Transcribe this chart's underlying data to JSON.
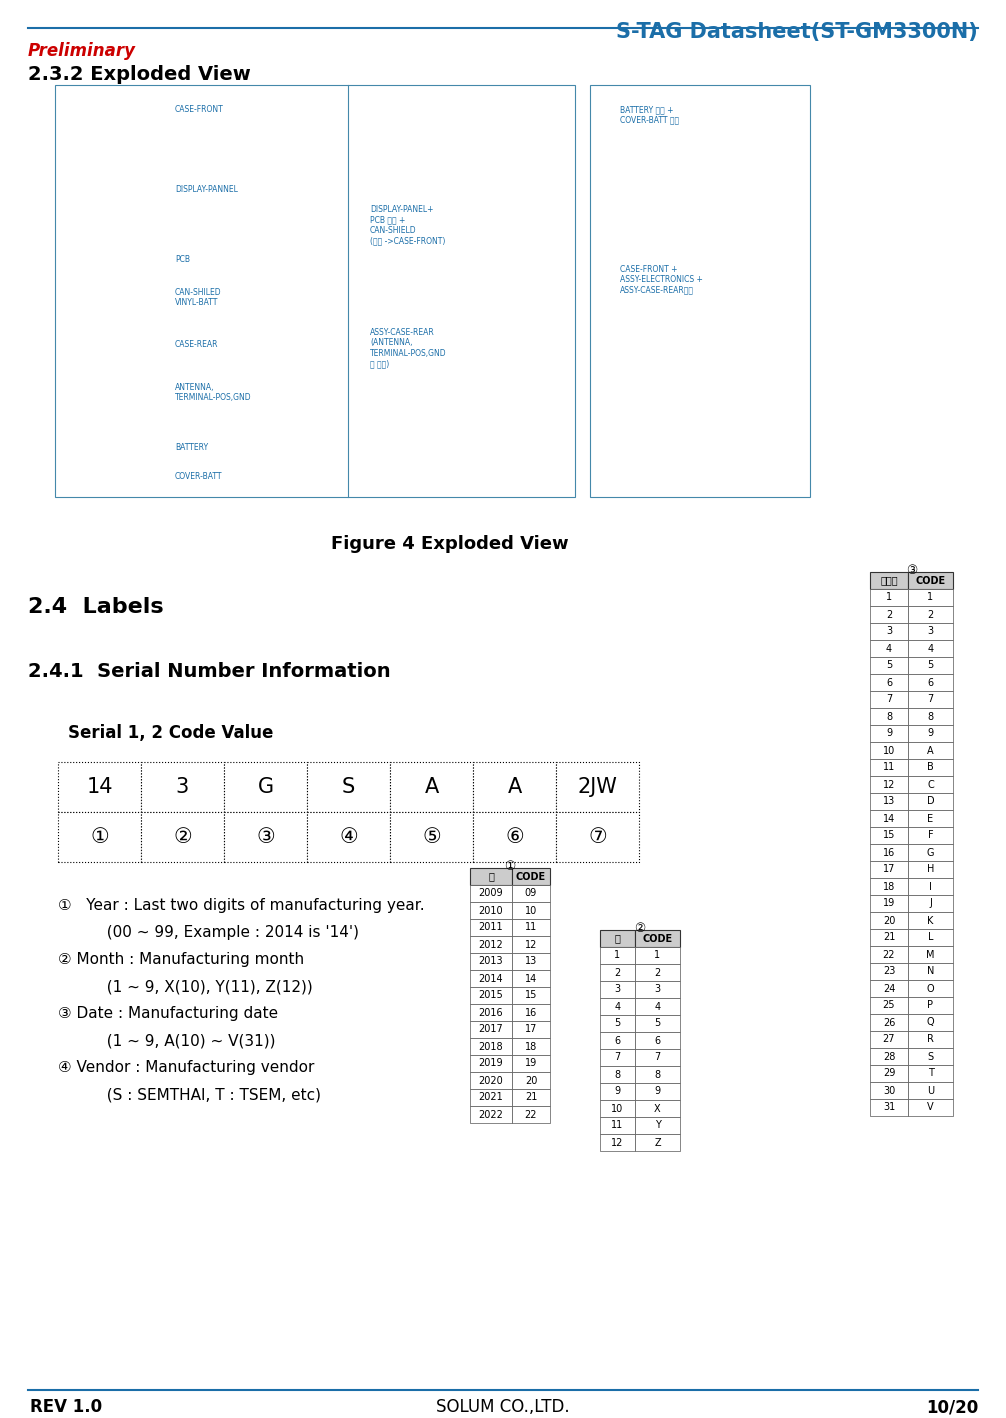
{
  "page_title": "S-TAG Datasheet(ST-GM3300N)",
  "preliminary_text": "Preliminary",
  "section_232": "2.3.2 Exploded View",
  "figure_caption": "Figure 4 Exploded View",
  "section_24": "2.4  Labels",
  "section_241": "2.4.1  Serial Number Information",
  "serial_label": "Serial 1, 2 Code Value",
  "serial_row1": [
    "14",
    "3",
    "G",
    "S",
    "A",
    "A",
    "2JW"
  ],
  "serial_row2": [
    "①",
    "②",
    "③",
    "④",
    "⑤",
    "⑥",
    "⑦"
  ],
  "notes": [
    "①   Year : Last two digits of manufacturing year.",
    "          (00 ~ 99, Example : 2014 is '14')",
    "② Month : Manufacturing month",
    "          (1 ~ 9, X(10), Y(11), Z(12))",
    "③ Date : Manufacturing date",
    "          (1 ~ 9, A(10) ~ V(31))",
    "④ Vendor : Manufacturing vendor",
    "          (S : SEMTHAI, T : TSEM, etc)"
  ],
  "footer_left": "REV 1.0",
  "footer_center": "SOLUM CO.,LTD.",
  "footer_right": "10/20",
  "title_color": "#1B6EA8",
  "preliminary_color": "#CC0000",
  "header_line_color": "#1B6EA8",
  "footer_line_color": "#1B6EA8",
  "bg_color": "#FFFFFF",
  "year_table_headers": [
    "년",
    "CODE"
  ],
  "year_table_data": [
    [
      "2009",
      "09"
    ],
    [
      "2010",
      "10"
    ],
    [
      "2011",
      "11"
    ],
    [
      "2012",
      "12"
    ],
    [
      "2013",
      "13"
    ],
    [
      "2014",
      "14"
    ],
    [
      "2015",
      "15"
    ],
    [
      "2016",
      "16"
    ],
    [
      "2017",
      "17"
    ],
    [
      "2018",
      "18"
    ],
    [
      "2019",
      "19"
    ],
    [
      "2020",
      "20"
    ],
    [
      "2021",
      "21"
    ],
    [
      "2022",
      "22"
    ]
  ],
  "month_table_headers": [
    "월",
    "CODE"
  ],
  "month_table_data": [
    [
      "1",
      "1"
    ],
    [
      "2",
      "2"
    ],
    [
      "3",
      "3"
    ],
    [
      "4",
      "4"
    ],
    [
      "5",
      "5"
    ],
    [
      "6",
      "6"
    ],
    [
      "7",
      "7"
    ],
    [
      "8",
      "8"
    ],
    [
      "9",
      "9"
    ],
    [
      "10",
      "X"
    ],
    [
      "11",
      "Y"
    ],
    [
      "12",
      "Z"
    ]
  ],
  "digit_table_headers": [
    "자리수",
    "CODE"
  ],
  "digit_table_data": [
    [
      "1",
      "1"
    ],
    [
      "2",
      "2"
    ],
    [
      "3",
      "3"
    ],
    [
      "4",
      "4"
    ],
    [
      "5",
      "5"
    ],
    [
      "6",
      "6"
    ],
    [
      "7",
      "7"
    ],
    [
      "8",
      "8"
    ],
    [
      "9",
      "9"
    ],
    [
      "10",
      "A"
    ],
    [
      "11",
      "B"
    ],
    [
      "12",
      "C"
    ],
    [
      "13",
      "D"
    ],
    [
      "14",
      "E"
    ],
    [
      "15",
      "F"
    ],
    [
      "16",
      "G"
    ],
    [
      "17",
      "H"
    ],
    [
      "18",
      "I"
    ],
    [
      "19",
      "J"
    ],
    [
      "20",
      "K"
    ],
    [
      "21",
      "L"
    ],
    [
      "22",
      "M"
    ],
    [
      "23",
      "N"
    ],
    [
      "24",
      "O"
    ],
    [
      "25",
      "P"
    ],
    [
      "26",
      "Q"
    ],
    [
      "27",
      "R"
    ],
    [
      "28",
      "S"
    ],
    [
      "29",
      "T"
    ],
    [
      "30",
      "U"
    ],
    [
      "31",
      "V"
    ]
  ],
  "exploded_view_labels_left": [
    [
      175,
      105,
      "CASE-FRONT"
    ],
    [
      175,
      185,
      "DISPLAY-PANNEL"
    ],
    [
      175,
      255,
      "PCB"
    ],
    [
      175,
      288,
      "CAN-SHILED\nVINYL-BATT"
    ],
    [
      175,
      340,
      "CASE-REAR"
    ],
    [
      175,
      383,
      "ANTENNA,\nTERMINAL-POS,GND"
    ],
    [
      175,
      443,
      "BATTERY"
    ],
    [
      175,
      472,
      "COVER-BATT"
    ]
  ],
  "exploded_view_labels_mid": [
    [
      370,
      205,
      "DISPLAY-PANEL+\nPCB 전체 +\nCAN-SHIELD\n(삽입 ->CASE-FRONT)"
    ],
    [
      370,
      328,
      "ASSY-CASE-REAR\n(ANTENNA,\nTERMINAL-POS,GND\n열 충전)"
    ]
  ],
  "exploded_view_labels_right": [
    [
      620,
      105,
      "BATTERY 삽입 +\nCOVER-BATT 조립"
    ],
    [
      620,
      265,
      "CASE-FRONT +\nASSY-ELECTRONICS +\nASSY-CASE-REAR조립"
    ]
  ]
}
